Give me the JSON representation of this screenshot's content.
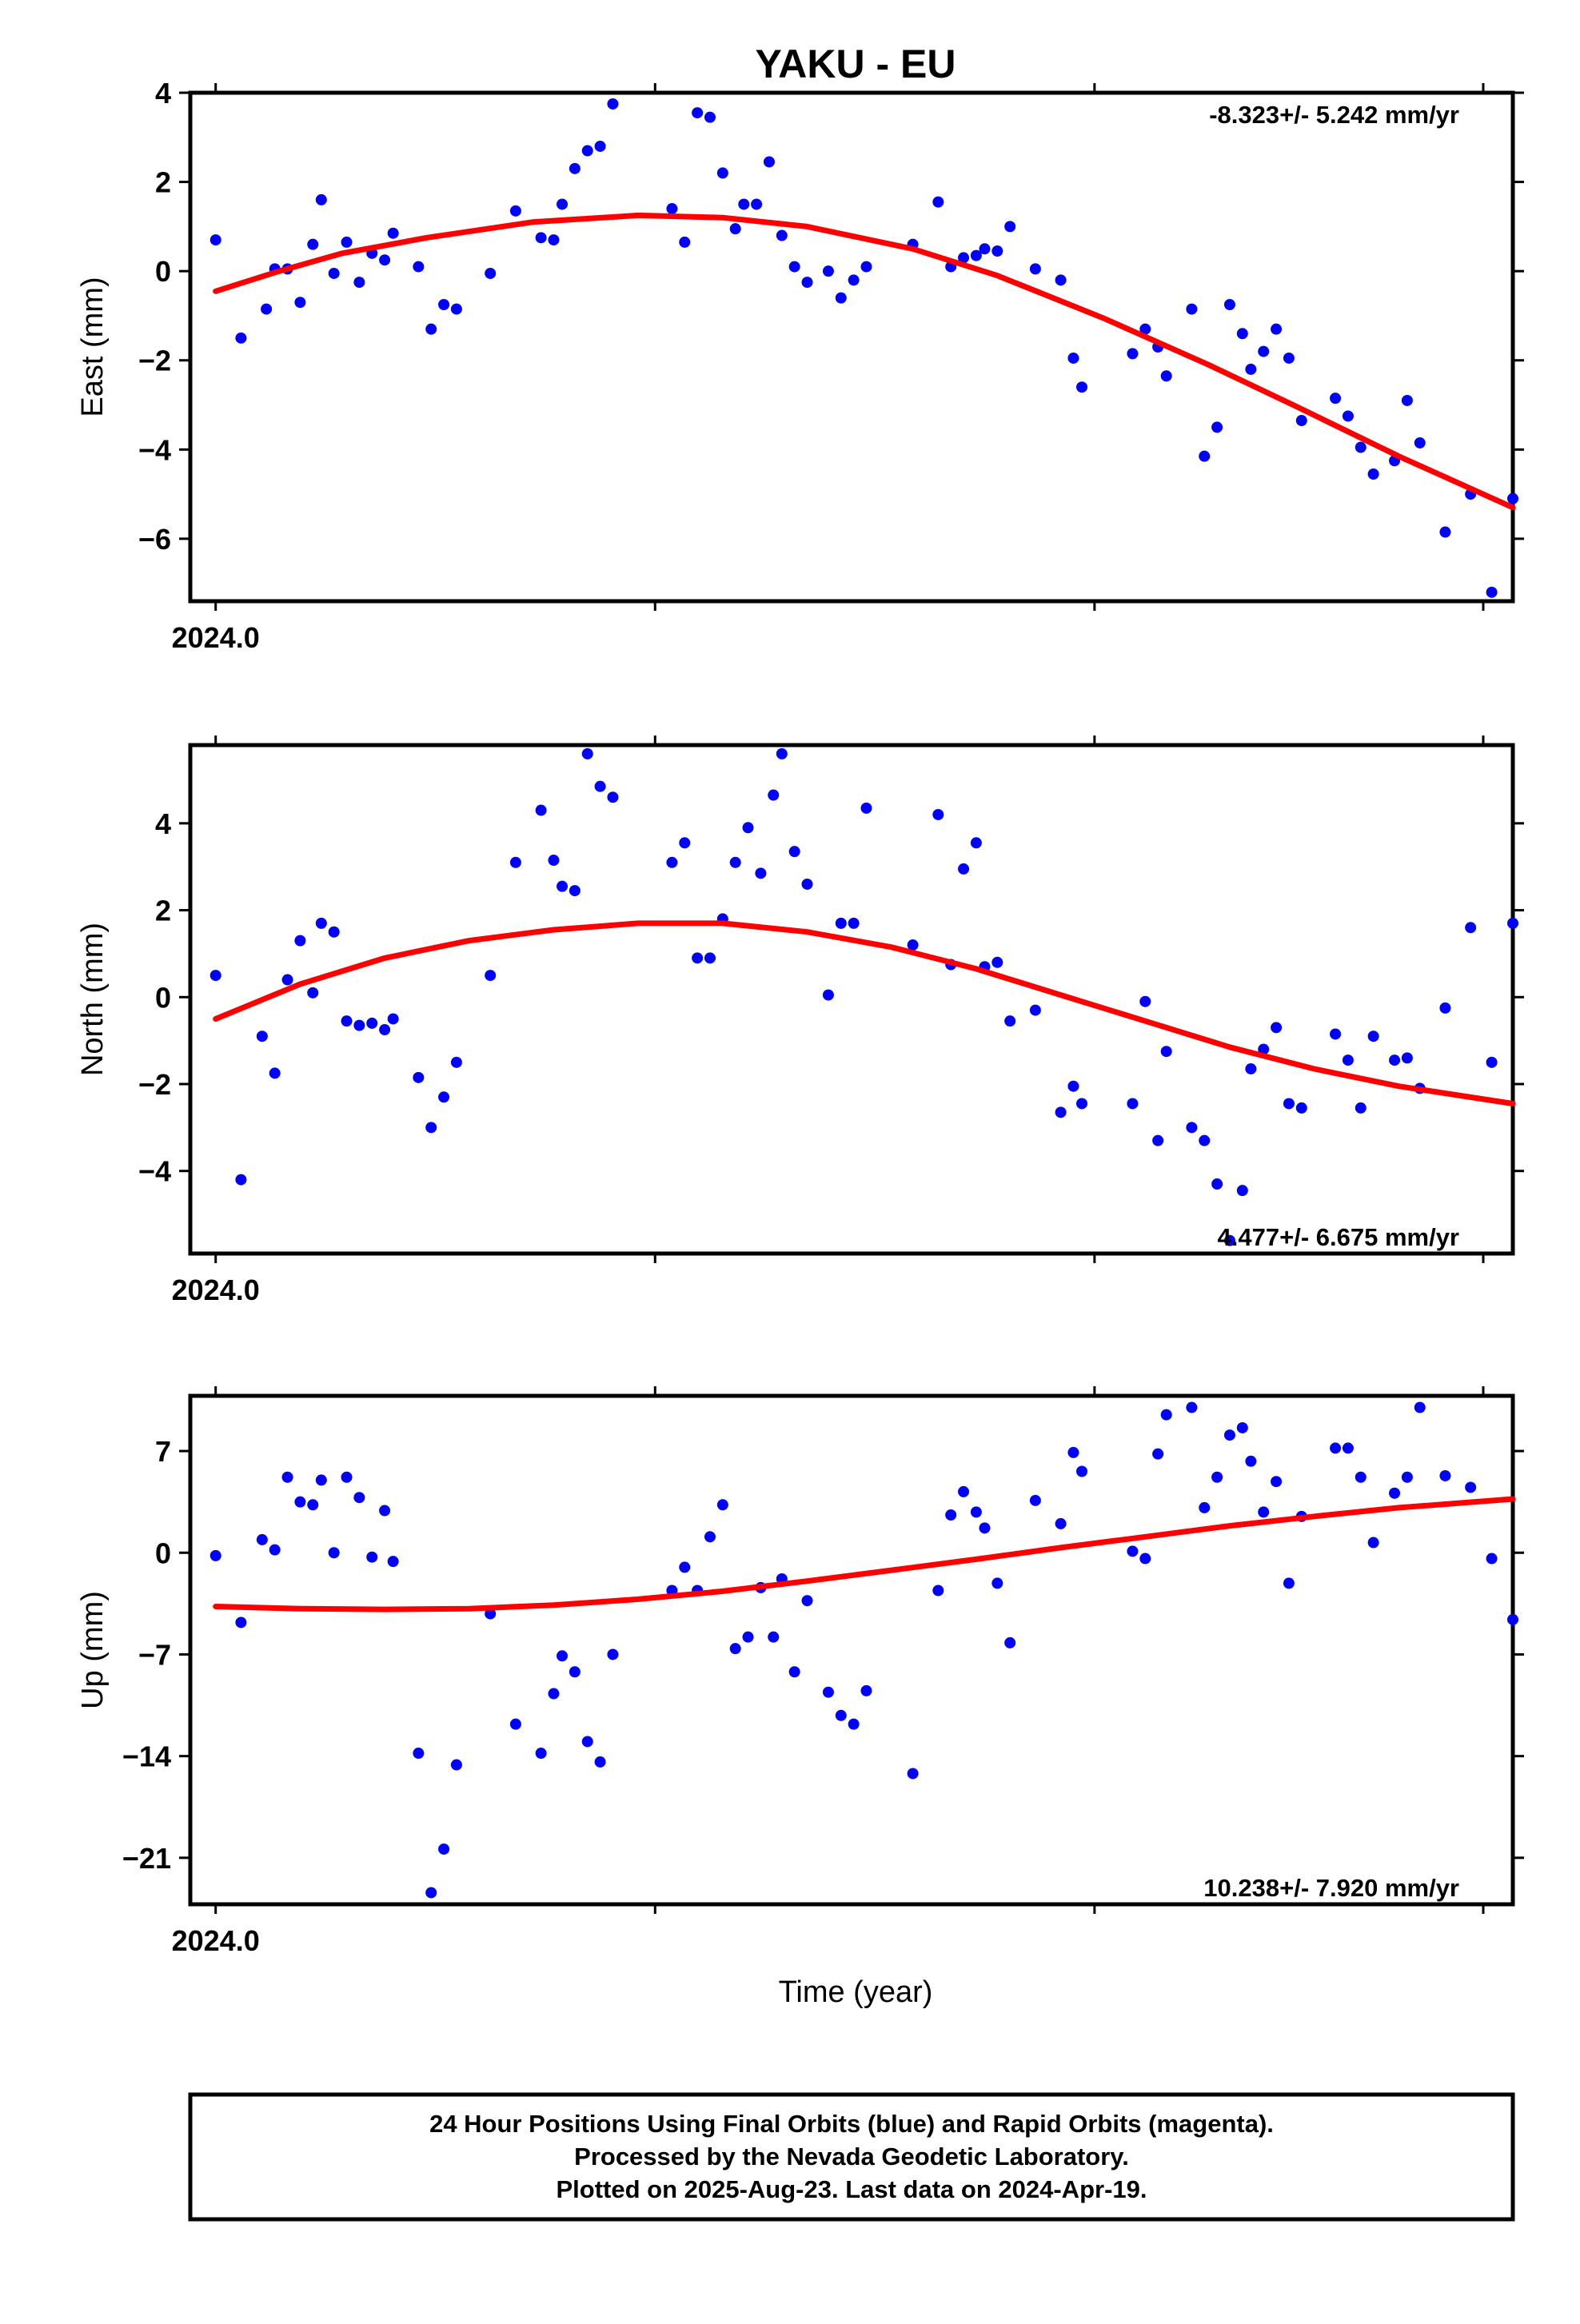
{
  "page": {
    "title": "YAKU - EU",
    "xlabel": "Time (year)"
  },
  "colors": {
    "points": "#0000ff",
    "fit": "#ff0000",
    "frame": "#000000"
  },
  "footer": {
    "lines": [
      "24 Hour Positions Using Final Orbits (blue) and Rapid Orbits (magenta).",
      "Processed by the Nevada Geodetic Laboratory.",
      "Plotted on 2025-Aug-23. Last data on 2024-Apr-19."
    ]
  },
  "chart_data": [
    {
      "type": "scatter",
      "name": "east",
      "ylabel": "East (mm)",
      "rate_text": "-8.323+/- 5.242 mm/yr",
      "rate_position": "top-right",
      "xlim": [
        2023.994,
        2024.307
      ],
      "ylim": [
        -7.4,
        4.0
      ],
      "x_tick_values": [
        2024.0,
        2024.104,
        2024.208,
        2024.3
      ],
      "x_tick_labels": [
        "2024.0",
        "",
        "",
        ""
      ],
      "y_ticks": [
        4,
        2,
        0,
        -2,
        -4,
        -6
      ],
      "y_tick_labels": [
        "4",
        "2",
        "0",
        "−2",
        "−4",
        "−6"
      ],
      "grid": false,
      "points": [
        [
          2024.0,
          0.7
        ],
        [
          2024.006,
          -1.5
        ],
        [
          2024.012,
          -0.85
        ],
        [
          2024.014,
          0.05
        ],
        [
          2024.017,
          0.05
        ],
        [
          2024.02,
          -0.7
        ],
        [
          2024.023,
          0.6
        ],
        [
          2024.025,
          1.6
        ],
        [
          2024.028,
          -0.05
        ],
        [
          2024.031,
          0.65
        ],
        [
          2024.034,
          -0.25
        ],
        [
          2024.037,
          0.4
        ],
        [
          2024.04,
          0.25
        ],
        [
          2024.042,
          0.85
        ],
        [
          2024.048,
          0.1
        ],
        [
          2024.051,
          -1.3
        ],
        [
          2024.054,
          -0.75
        ],
        [
          2024.057,
          -0.85
        ],
        [
          2024.065,
          -0.05
        ],
        [
          2024.071,
          1.35
        ],
        [
          2024.077,
          0.75
        ],
        [
          2024.08,
          0.7
        ],
        [
          2024.082,
          1.5
        ],
        [
          2024.085,
          2.3
        ],
        [
          2024.088,
          2.7
        ],
        [
          2024.091,
          2.8
        ],
        [
          2024.094,
          3.75
        ],
        [
          2024.108,
          1.4
        ],
        [
          2024.111,
          0.65
        ],
        [
          2024.114,
          3.55
        ],
        [
          2024.117,
          3.45
        ],
        [
          2024.12,
          2.2
        ],
        [
          2024.123,
          0.95
        ],
        [
          2024.125,
          1.5
        ],
        [
          2024.128,
          1.5
        ],
        [
          2024.131,
          2.45
        ],
        [
          2024.134,
          0.8
        ],
        [
          2024.137,
          0.1
        ],
        [
          2024.14,
          -0.25
        ],
        [
          2024.145,
          0.0
        ],
        [
          2024.148,
          -0.6
        ],
        [
          2024.151,
          -0.2
        ],
        [
          2024.154,
          0.1
        ],
        [
          2024.165,
          0.6
        ],
        [
          2024.171,
          1.55
        ],
        [
          2024.174,
          0.1
        ],
        [
          2024.177,
          0.3
        ],
        [
          2024.18,
          0.35
        ],
        [
          2024.182,
          0.5
        ],
        [
          2024.185,
          0.45
        ],
        [
          2024.188,
          1.0
        ],
        [
          2024.194,
          0.05
        ],
        [
          2024.2,
          -0.2
        ],
        [
          2024.203,
          -1.95
        ],
        [
          2024.205,
          -2.6
        ],
        [
          2024.217,
          -1.85
        ],
        [
          2024.22,
          -1.3
        ],
        [
          2024.223,
          -1.7
        ],
        [
          2024.225,
          -2.35
        ],
        [
          2024.231,
          -0.85
        ],
        [
          2024.234,
          -4.15
        ],
        [
          2024.237,
          -3.5
        ],
        [
          2024.24,
          -0.75
        ],
        [
          2024.243,
          -1.4
        ],
        [
          2024.245,
          -2.2
        ],
        [
          2024.248,
          -1.8
        ],
        [
          2024.251,
          -1.3
        ],
        [
          2024.254,
          -1.95
        ],
        [
          2024.257,
          -3.35
        ],
        [
          2024.265,
          -2.85
        ],
        [
          2024.268,
          -3.25
        ],
        [
          2024.271,
          -3.95
        ],
        [
          2024.274,
          -4.55
        ],
        [
          2024.279,
          -4.25
        ],
        [
          2024.282,
          -2.9
        ],
        [
          2024.285,
          -3.85
        ],
        [
          2024.291,
          -5.85
        ],
        [
          2024.297,
          -5.0
        ],
        [
          2024.302,
          -7.2
        ],
        [
          2024.307,
          -5.1
        ]
      ],
      "fit": [
        [
          2024.0,
          -0.45
        ],
        [
          2024.015,
          0.0
        ],
        [
          2024.03,
          0.4
        ],
        [
          2024.05,
          0.75
        ],
        [
          2024.075,
          1.1
        ],
        [
          2024.1,
          1.25
        ],
        [
          2024.12,
          1.2
        ],
        [
          2024.14,
          1.0
        ],
        [
          2024.165,
          0.5
        ],
        [
          2024.185,
          -0.1
        ],
        [
          2024.21,
          -1.05
        ],
        [
          2024.235,
          -2.1
        ],
        [
          2024.255,
          -3.0
        ],
        [
          2024.28,
          -4.15
        ],
        [
          2024.307,
          -5.3
        ]
      ]
    },
    {
      "type": "scatter",
      "name": "north",
      "ylabel": "North (mm)",
      "rate_text": "4.477+/- 6.675 mm/yr",
      "rate_position": "bottom-right",
      "xlim": [
        2023.994,
        2024.307
      ],
      "ylim": [
        -5.9,
        5.8
      ],
      "x_tick_values": [
        2024.0,
        2024.104,
        2024.208,
        2024.3
      ],
      "x_tick_labels": [
        "2024.0",
        "",
        "",
        ""
      ],
      "y_ticks": [
        4,
        2,
        0,
        -2,
        -4
      ],
      "y_tick_labels": [
        "4",
        "2",
        "0",
        "−2",
        "−4"
      ],
      "grid": false,
      "points": [
        [
          2024.0,
          0.5
        ],
        [
          2024.006,
          -4.2
        ],
        [
          2024.011,
          -0.9
        ],
        [
          2024.014,
          -1.75
        ],
        [
          2024.017,
          0.4
        ],
        [
          2024.02,
          1.3
        ],
        [
          2024.023,
          0.1
        ],
        [
          2024.025,
          1.7
        ],
        [
          2024.028,
          1.5
        ],
        [
          2024.031,
          -0.55
        ],
        [
          2024.034,
          -0.65
        ],
        [
          2024.037,
          -0.6
        ],
        [
          2024.04,
          -0.75
        ],
        [
          2024.042,
          -0.5
        ],
        [
          2024.048,
          -1.85
        ],
        [
          2024.051,
          -3.0
        ],
        [
          2024.054,
          -2.3
        ],
        [
          2024.057,
          -1.5
        ],
        [
          2024.065,
          0.5
        ],
        [
          2024.071,
          3.1
        ],
        [
          2024.077,
          4.3
        ],
        [
          2024.08,
          3.15
        ],
        [
          2024.082,
          2.55
        ],
        [
          2024.085,
          2.45
        ],
        [
          2024.088,
          5.6
        ],
        [
          2024.091,
          4.85
        ],
        [
          2024.094,
          4.6
        ],
        [
          2024.108,
          3.1
        ],
        [
          2024.111,
          3.55
        ],
        [
          2024.114,
          0.9
        ],
        [
          2024.117,
          0.9
        ],
        [
          2024.12,
          1.8
        ],
        [
          2024.123,
          3.1
        ],
        [
          2024.126,
          3.9
        ],
        [
          2024.129,
          2.85
        ],
        [
          2024.132,
          4.65
        ],
        [
          2024.134,
          5.6
        ],
        [
          2024.137,
          3.35
        ],
        [
          2024.14,
          2.6
        ],
        [
          2024.145,
          0.05
        ],
        [
          2024.148,
          1.7
        ],
        [
          2024.151,
          1.7
        ],
        [
          2024.154,
          4.35
        ],
        [
          2024.165,
          1.2
        ],
        [
          2024.171,
          4.2
        ],
        [
          2024.174,
          0.75
        ],
        [
          2024.177,
          2.95
        ],
        [
          2024.18,
          3.55
        ],
        [
          2024.182,
          0.7
        ],
        [
          2024.185,
          0.8
        ],
        [
          2024.188,
          -0.55
        ],
        [
          2024.194,
          -0.3
        ],
        [
          2024.2,
          -2.65
        ],
        [
          2024.203,
          -2.05
        ],
        [
          2024.205,
          -2.45
        ],
        [
          2024.217,
          -2.45
        ],
        [
          2024.22,
          -0.1
        ],
        [
          2024.223,
          -3.3
        ],
        [
          2024.225,
          -1.25
        ],
        [
          2024.231,
          -3.0
        ],
        [
          2024.234,
          -3.3
        ],
        [
          2024.237,
          -4.3
        ],
        [
          2024.24,
          -5.6
        ],
        [
          2024.243,
          -4.45
        ],
        [
          2024.245,
          -1.65
        ],
        [
          2024.248,
          -1.2
        ],
        [
          2024.251,
          -0.7
        ],
        [
          2024.254,
          -2.45
        ],
        [
          2024.257,
          -2.55
        ],
        [
          2024.265,
          -0.85
        ],
        [
          2024.268,
          -1.45
        ],
        [
          2024.271,
          -2.55
        ],
        [
          2024.274,
          -0.9
        ],
        [
          2024.279,
          -1.45
        ],
        [
          2024.282,
          -1.4
        ],
        [
          2024.285,
          -2.1
        ],
        [
          2024.291,
          -0.25
        ],
        [
          2024.297,
          1.6
        ],
        [
          2024.302,
          -1.5
        ],
        [
          2024.307,
          1.7
        ]
      ],
      "fit": [
        [
          2024.0,
          -0.5
        ],
        [
          2024.02,
          0.3
        ],
        [
          2024.04,
          0.9
        ],
        [
          2024.06,
          1.3
        ],
        [
          2024.08,
          1.55
        ],
        [
          2024.1,
          1.7
        ],
        [
          2024.12,
          1.7
        ],
        [
          2024.14,
          1.5
        ],
        [
          2024.16,
          1.15
        ],
        [
          2024.18,
          0.65
        ],
        [
          2024.2,
          0.05
        ],
        [
          2024.22,
          -0.55
        ],
        [
          2024.24,
          -1.15
        ],
        [
          2024.26,
          -1.65
        ],
        [
          2024.28,
          -2.05
        ],
        [
          2024.307,
          -2.45
        ]
      ]
    },
    {
      "type": "scatter",
      "name": "up",
      "ylabel": "Up (mm)",
      "rate_text": "10.238+/- 7.920 mm/yr",
      "rate_position": "bottom-right",
      "xlim": [
        2023.994,
        2024.307
      ],
      "ylim": [
        -24.2,
        10.8
      ],
      "x_tick_values": [
        2024.0,
        2024.104,
        2024.208,
        2024.3
      ],
      "x_tick_labels": [
        "2024.0",
        "",
        "",
        ""
      ],
      "y_ticks": [
        7,
        0,
        -7,
        -14,
        -21
      ],
      "y_tick_labels": [
        "7",
        "0",
        "−7",
        "−14",
        "−21"
      ],
      "grid": false,
      "points": [
        [
          2024.0,
          -0.2
        ],
        [
          2024.006,
          -4.8
        ],
        [
          2024.011,
          0.9
        ],
        [
          2024.014,
          0.2
        ],
        [
          2024.017,
          5.2
        ],
        [
          2024.02,
          3.5
        ],
        [
          2024.023,
          3.3
        ],
        [
          2024.025,
          5.0
        ],
        [
          2024.028,
          0.0
        ],
        [
          2024.031,
          5.2
        ],
        [
          2024.034,
          3.8
        ],
        [
          2024.037,
          -0.3
        ],
        [
          2024.04,
          2.9
        ],
        [
          2024.042,
          -0.6
        ],
        [
          2024.048,
          -13.8
        ],
        [
          2024.051,
          -23.4
        ],
        [
          2024.054,
          -20.4
        ],
        [
          2024.057,
          -14.6
        ],
        [
          2024.065,
          -4.2
        ],
        [
          2024.071,
          -11.8
        ],
        [
          2024.077,
          -13.8
        ],
        [
          2024.08,
          -9.7
        ],
        [
          2024.082,
          -7.1
        ],
        [
          2024.085,
          -8.2
        ],
        [
          2024.088,
          -13.0
        ],
        [
          2024.091,
          -14.4
        ],
        [
          2024.094,
          -7.0
        ],
        [
          2024.108,
          -2.6
        ],
        [
          2024.111,
          -1.0
        ],
        [
          2024.114,
          -2.6
        ],
        [
          2024.117,
          1.1
        ],
        [
          2024.12,
          3.3
        ],
        [
          2024.123,
          -6.6
        ],
        [
          2024.126,
          -5.8
        ],
        [
          2024.129,
          -2.4
        ],
        [
          2024.132,
          -5.8
        ],
        [
          2024.134,
          -1.8
        ],
        [
          2024.137,
          -8.2
        ],
        [
          2024.14,
          -3.3
        ],
        [
          2024.145,
          -9.6
        ],
        [
          2024.148,
          -11.2
        ],
        [
          2024.151,
          -11.8
        ],
        [
          2024.154,
          -9.5
        ],
        [
          2024.165,
          -15.2
        ],
        [
          2024.171,
          -2.6
        ],
        [
          2024.174,
          2.6
        ],
        [
          2024.177,
          4.2
        ],
        [
          2024.18,
          2.8
        ],
        [
          2024.182,
          1.7
        ],
        [
          2024.185,
          -2.1
        ],
        [
          2024.188,
          -6.2
        ],
        [
          2024.194,
          3.6
        ],
        [
          2024.2,
          2.0
        ],
        [
          2024.203,
          6.9
        ],
        [
          2024.205,
          5.6
        ],
        [
          2024.217,
          0.1
        ],
        [
          2024.22,
          -0.4
        ],
        [
          2024.223,
          6.8
        ],
        [
          2024.225,
          9.5
        ],
        [
          2024.231,
          10.0
        ],
        [
          2024.234,
          3.1
        ],
        [
          2024.237,
          5.2
        ],
        [
          2024.24,
          8.1
        ],
        [
          2024.243,
          8.6
        ],
        [
          2024.245,
          6.3
        ],
        [
          2024.248,
          2.8
        ],
        [
          2024.251,
          4.9
        ],
        [
          2024.254,
          -2.1
        ],
        [
          2024.257,
          2.5
        ],
        [
          2024.265,
          7.2
        ],
        [
          2024.268,
          7.2
        ],
        [
          2024.271,
          5.2
        ],
        [
          2024.274,
          0.7
        ],
        [
          2024.279,
          4.1
        ],
        [
          2024.282,
          5.2
        ],
        [
          2024.285,
          10.0
        ],
        [
          2024.291,
          5.3
        ],
        [
          2024.297,
          4.5
        ],
        [
          2024.302,
          -0.4
        ],
        [
          2024.307,
          -4.6
        ]
      ],
      "fit": [
        [
          2024.0,
          -3.7
        ],
        [
          2024.02,
          -3.85
        ],
        [
          2024.04,
          -3.9
        ],
        [
          2024.06,
          -3.85
        ],
        [
          2024.08,
          -3.6
        ],
        [
          2024.1,
          -3.2
        ],
        [
          2024.12,
          -2.65
        ],
        [
          2024.14,
          -1.95
        ],
        [
          2024.16,
          -1.2
        ],
        [
          2024.18,
          -0.45
        ],
        [
          2024.2,
          0.35
        ],
        [
          2024.22,
          1.1
        ],
        [
          2024.24,
          1.85
        ],
        [
          2024.26,
          2.5
        ],
        [
          2024.28,
          3.1
        ],
        [
          2024.307,
          3.7
        ]
      ]
    }
  ]
}
